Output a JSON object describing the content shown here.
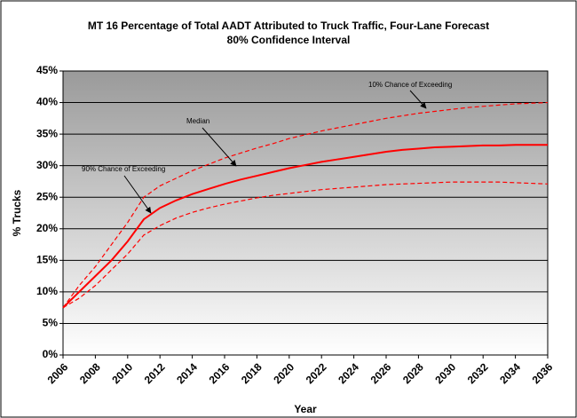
{
  "chart_data": {
    "type": "line",
    "title": "MT 16 Percentage of Total AADT Attributed to Truck Traffic, Four-Lane Forecast",
    "subtitle": "80% Confidence Interval",
    "x_label": "Year",
    "y_label": "% Trucks",
    "x": [
      2006,
      2007,
      2008,
      2009,
      2010,
      2011,
      2012,
      2013,
      2014,
      2015,
      2016,
      2017,
      2018,
      2019,
      2020,
      2021,
      2022,
      2023,
      2024,
      2025,
      2026,
      2027,
      2028,
      2029,
      2030,
      2031,
      2032,
      2033,
      2034,
      2035,
      2036
    ],
    "series": [
      {
        "name": "10% Chance of Exceeding",
        "color": "#ff0000",
        "dashed": true,
        "values": [
          7.5,
          11,
          14,
          17.5,
          21,
          25,
          26.8,
          28,
          29.2,
          30.2,
          31.2,
          32,
          32.8,
          33.5,
          34.3,
          34.9,
          35.5,
          36,
          36.5,
          37,
          37.5,
          37.9,
          38.3,
          38.6,
          38.9,
          39.2,
          39.4,
          39.6,
          39.8,
          39.9,
          40
        ]
      },
      {
        "name": "Median",
        "color": "#ff0000",
        "dashed": false,
        "values": [
          7.5,
          10,
          12.5,
          15,
          18,
          21.5,
          23.3,
          24.5,
          25.5,
          26.3,
          27.1,
          27.8,
          28.4,
          29,
          29.6,
          30.1,
          30.6,
          31,
          31.4,
          31.8,
          32.2,
          32.5,
          32.7,
          32.9,
          33,
          33.1,
          33.2,
          33.2,
          33.3,
          33.3,
          33.3
        ]
      },
      {
        "name": "90% Chance of Exceeding",
        "color": "#ff0000",
        "dashed": true,
        "values": [
          7.5,
          9,
          11,
          13.5,
          16,
          19,
          20.5,
          21.7,
          22.6,
          23.3,
          23.9,
          24.4,
          24.9,
          25.3,
          25.6,
          25.9,
          26.2,
          26.4,
          26.6,
          26.8,
          27,
          27.1,
          27.2,
          27.3,
          27.4,
          27.4,
          27.4,
          27.4,
          27.3,
          27.2,
          27.1
        ]
      }
    ],
    "xlim": [
      2006,
      2036
    ],
    "xticks": [
      2006,
      2008,
      2010,
      2012,
      2014,
      2016,
      2018,
      2020,
      2022,
      2024,
      2026,
      2028,
      2030,
      2032,
      2034,
      2036
    ],
    "ylim": [
      0,
      45
    ],
    "yticks": [
      {
        "value": 0,
        "label": "0%"
      },
      {
        "value": 5,
        "label": "5%"
      },
      {
        "value": 10,
        "label": "10%"
      },
      {
        "value": 15,
        "label": "15%"
      },
      {
        "value": 20,
        "label": "20%"
      },
      {
        "value": 25,
        "label": "25%"
      },
      {
        "value": 30,
        "label": "30%"
      },
      {
        "value": 35,
        "label": "35%"
      },
      {
        "value": 40,
        "label": "40%"
      },
      {
        "value": 45,
        "label": "45%"
      }
    ],
    "grid": true
  }
}
